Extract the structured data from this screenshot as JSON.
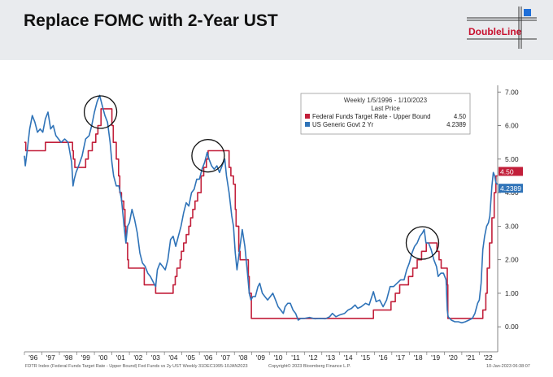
{
  "header": {
    "title": "Replace FOMC with 2-Year UST",
    "brand": "DoubleLine",
    "brand_color": "#c8102e",
    "brand_accent": "#1e6fd9"
  },
  "footer": {
    "left": "FDTR Index (Federal Funds Target Rate - Upper Bound) Fed Funds vs 2y UST  Weekly 31DEC1995-10JAN2023",
    "mid": "Copyright© 2023 Bloomberg Finance L.P.",
    "right": "10-Jan-2023 06:38:07"
  },
  "chart_data": {
    "type": "line",
    "title": "Weekly 1/5/1996 - 1/10/2023",
    "subtitle": "Last Price",
    "xlim": [
      1996.0,
      2023.05
    ],
    "ylim": [
      -0.6,
      7.2
    ],
    "x_ticks": [
      "'96",
      "'97",
      "'98",
      "'99",
      "'00",
      "'01",
      "'02",
      "'03",
      "'04",
      "'05",
      "'06",
      "'07",
      "'08",
      "'09",
      "'10",
      "'11",
      "'12",
      "'13",
      "'14",
      "'15",
      "'16",
      "'17",
      "'18",
      "'19",
      "'20",
      "'21",
      "'22"
    ],
    "y_ticks": [
      "7.00",
      "6.00",
      "5.00",
      "4.00",
      "3.00",
      "2.00",
      "1.00",
      "0.00"
    ],
    "legend_position": "top-right",
    "series": [
      {
        "name": "Federal Funds Target Rate - Upper Bound",
        "last_value": "4.50",
        "color": "#c21f3a",
        "step": true,
        "points": [
          [
            1996.0,
            5.5
          ],
          [
            1996.08,
            5.25
          ],
          [
            1997.2,
            5.5
          ],
          [
            1998.75,
            5.25
          ],
          [
            1998.8,
            5.0
          ],
          [
            1998.88,
            4.75
          ],
          [
            1999.5,
            5.0
          ],
          [
            1999.65,
            5.25
          ],
          [
            1999.88,
            5.5
          ],
          [
            2000.08,
            5.75
          ],
          [
            2000.2,
            6.0
          ],
          [
            2000.38,
            6.5
          ],
          [
            2001.0,
            6.0
          ],
          [
            2001.08,
            5.5
          ],
          [
            2001.25,
            5.0
          ],
          [
            2001.38,
            4.5
          ],
          [
            2001.45,
            4.0
          ],
          [
            2001.55,
            3.75
          ],
          [
            2001.68,
            3.5
          ],
          [
            2001.75,
            3.0
          ],
          [
            2001.8,
            2.5
          ],
          [
            2001.9,
            2.0
          ],
          [
            2001.95,
            1.75
          ],
          [
            2002.85,
            1.25
          ],
          [
            2003.5,
            1.0
          ],
          [
            2004.5,
            1.25
          ],
          [
            2004.62,
            1.5
          ],
          [
            2004.72,
            1.75
          ],
          [
            2004.9,
            2.0
          ],
          [
            2004.97,
            2.25
          ],
          [
            2005.1,
            2.5
          ],
          [
            2005.25,
            2.75
          ],
          [
            2005.4,
            3.0
          ],
          [
            2005.5,
            3.25
          ],
          [
            2005.62,
            3.5
          ],
          [
            2005.75,
            3.75
          ],
          [
            2005.9,
            4.0
          ],
          [
            2006.1,
            4.5
          ],
          [
            2006.25,
            4.75
          ],
          [
            2006.4,
            5.0
          ],
          [
            2006.5,
            5.25
          ],
          [
            2007.7,
            4.75
          ],
          [
            2007.8,
            4.5
          ],
          [
            2007.95,
            4.25
          ],
          [
            2008.05,
            3.5
          ],
          [
            2008.1,
            3.0
          ],
          [
            2008.25,
            2.25
          ],
          [
            2008.33,
            2.0
          ],
          [
            2008.8,
            1.5
          ],
          [
            2008.85,
            1.0
          ],
          [
            2008.97,
            0.25
          ],
          [
            2015.95,
            0.5
          ],
          [
            2016.95,
            0.75
          ],
          [
            2017.2,
            1.0
          ],
          [
            2017.45,
            1.25
          ],
          [
            2017.95,
            1.5
          ],
          [
            2018.2,
            1.75
          ],
          [
            2018.45,
            2.0
          ],
          [
            2018.7,
            2.25
          ],
          [
            2018.97,
            2.5
          ],
          [
            2019.58,
            2.25
          ],
          [
            2019.7,
            2.0
          ],
          [
            2019.82,
            1.75
          ],
          [
            2020.17,
            1.25
          ],
          [
            2020.2,
            0.25
          ],
          [
            2022.2,
            0.5
          ],
          [
            2022.37,
            1.0
          ],
          [
            2022.45,
            1.75
          ],
          [
            2022.58,
            2.5
          ],
          [
            2022.72,
            3.25
          ],
          [
            2022.85,
            4.0
          ],
          [
            2022.95,
            4.5
          ],
          [
            2023.03,
            4.5
          ]
        ]
      },
      {
        "name": "US Generic Govt 2 Yr",
        "last_value": "4.2389",
        "color": "#2f73b8",
        "step": false,
        "points": [
          [
            1996.0,
            5.1
          ],
          [
            1996.05,
            4.8
          ],
          [
            1996.15,
            5.2
          ],
          [
            1996.3,
            5.9
          ],
          [
            1996.45,
            6.3
          ],
          [
            1996.6,
            6.1
          ],
          [
            1996.75,
            5.8
          ],
          [
            1996.9,
            5.9
          ],
          [
            1997.05,
            5.8
          ],
          [
            1997.2,
            6.2
          ],
          [
            1997.35,
            6.4
          ],
          [
            1997.5,
            5.9
          ],
          [
            1997.65,
            6.0
          ],
          [
            1997.8,
            5.7
          ],
          [
            1997.95,
            5.6
          ],
          [
            1998.1,
            5.5
          ],
          [
            1998.3,
            5.6
          ],
          [
            1998.5,
            5.5
          ],
          [
            1998.7,
            4.9
          ],
          [
            1998.78,
            4.2
          ],
          [
            1998.85,
            4.4
          ],
          [
            1998.95,
            4.6
          ],
          [
            1999.1,
            4.8
          ],
          [
            1999.3,
            5.1
          ],
          [
            1999.5,
            5.6
          ],
          [
            1999.7,
            5.7
          ],
          [
            1999.85,
            6.0
          ],
          [
            2000.0,
            6.4
          ],
          [
            2000.15,
            6.7
          ],
          [
            2000.3,
            6.9
          ],
          [
            2000.45,
            6.6
          ],
          [
            2000.6,
            6.3
          ],
          [
            2000.75,
            6.1
          ],
          [
            2000.9,
            5.5
          ],
          [
            2001.0,
            4.9
          ],
          [
            2001.1,
            4.5
          ],
          [
            2001.25,
            4.2
          ],
          [
            2001.4,
            4.2
          ],
          [
            2001.55,
            3.8
          ],
          [
            2001.7,
            3.0
          ],
          [
            2001.8,
            2.5
          ],
          [
            2001.9,
            3.0
          ],
          [
            2002.0,
            3.1
          ],
          [
            2002.15,
            3.5
          ],
          [
            2002.3,
            3.2
          ],
          [
            2002.45,
            2.8
          ],
          [
            2002.6,
            2.2
          ],
          [
            2002.75,
            1.9
          ],
          [
            2002.9,
            1.8
          ],
          [
            2003.05,
            1.6
          ],
          [
            2003.2,
            1.5
          ],
          [
            2003.4,
            1.3
          ],
          [
            2003.5,
            1.2
          ],
          [
            2003.6,
            1.7
          ],
          [
            2003.75,
            1.9
          ],
          [
            2003.9,
            1.8
          ],
          [
            2004.05,
            1.7
          ],
          [
            2004.2,
            2.0
          ],
          [
            2004.35,
            2.6
          ],
          [
            2004.5,
            2.7
          ],
          [
            2004.65,
            2.4
          ],
          [
            2004.8,
            2.7
          ],
          [
            2004.95,
            3.0
          ],
          [
            2005.1,
            3.4
          ],
          [
            2005.25,
            3.7
          ],
          [
            2005.4,
            3.6
          ],
          [
            2005.55,
            4.0
          ],
          [
            2005.7,
            4.1
          ],
          [
            2005.85,
            4.4
          ],
          [
            2006.0,
            4.4
          ],
          [
            2006.15,
            4.7
          ],
          [
            2006.3,
            4.9
          ],
          [
            2006.45,
            5.2
          ],
          [
            2006.55,
            5.0
          ],
          [
            2006.7,
            4.8
          ],
          [
            2006.85,
            4.7
          ],
          [
            2007.0,
            4.8
          ],
          [
            2007.15,
            4.6
          ],
          [
            2007.3,
            4.8
          ],
          [
            2007.45,
            5.0
          ],
          [
            2007.55,
            4.5
          ],
          [
            2007.7,
            4.0
          ],
          [
            2007.85,
            3.3
          ],
          [
            2007.95,
            3.0
          ],
          [
            2008.05,
            2.2
          ],
          [
            2008.15,
            1.7
          ],
          [
            2008.3,
            2.3
          ],
          [
            2008.45,
            2.9
          ],
          [
            2008.6,
            2.4
          ],
          [
            2008.75,
            1.6
          ],
          [
            2008.85,
            1.0
          ],
          [
            2008.95,
            0.8
          ],
          [
            2009.05,
            0.9
          ],
          [
            2009.2,
            0.9
          ],
          [
            2009.35,
            1.2
          ],
          [
            2009.45,
            1.3
          ],
          [
            2009.6,
            1.0
          ],
          [
            2009.75,
            0.9
          ],
          [
            2009.9,
            0.8
          ],
          [
            2010.05,
            0.9
          ],
          [
            2010.2,
            1.0
          ],
          [
            2010.35,
            0.8
          ],
          [
            2010.5,
            0.6
          ],
          [
            2010.65,
            0.5
          ],
          [
            2010.8,
            0.4
          ],
          [
            2010.9,
            0.6
          ],
          [
            2011.05,
            0.7
          ],
          [
            2011.2,
            0.7
          ],
          [
            2011.35,
            0.5
          ],
          [
            2011.5,
            0.4
          ],
          [
            2011.65,
            0.2
          ],
          [
            2011.8,
            0.25
          ],
          [
            2012.0,
            0.25
          ],
          [
            2012.3,
            0.28
          ],
          [
            2012.6,
            0.24
          ],
          [
            2012.9,
            0.25
          ],
          [
            2013.2,
            0.24
          ],
          [
            2013.45,
            0.3
          ],
          [
            2013.6,
            0.4
          ],
          [
            2013.8,
            0.3
          ],
          [
            2014.0,
            0.35
          ],
          [
            2014.3,
            0.4
          ],
          [
            2014.5,
            0.5
          ],
          [
            2014.7,
            0.55
          ],
          [
            2014.9,
            0.65
          ],
          [
            2015.05,
            0.55
          ],
          [
            2015.25,
            0.6
          ],
          [
            2015.5,
            0.7
          ],
          [
            2015.7,
            0.65
          ],
          [
            2015.95,
            1.05
          ],
          [
            2016.1,
            0.75
          ],
          [
            2016.3,
            0.8
          ],
          [
            2016.5,
            0.6
          ],
          [
            2016.7,
            0.8
          ],
          [
            2016.9,
            1.2
          ],
          [
            2017.1,
            1.2
          ],
          [
            2017.3,
            1.3
          ],
          [
            2017.5,
            1.4
          ],
          [
            2017.7,
            1.4
          ],
          [
            2017.85,
            1.7
          ],
          [
            2018.0,
            1.9
          ],
          [
            2018.15,
            2.2
          ],
          [
            2018.3,
            2.4
          ],
          [
            2018.45,
            2.5
          ],
          [
            2018.6,
            2.7
          ],
          [
            2018.75,
            2.8
          ],
          [
            2018.85,
            2.9
          ],
          [
            2018.95,
            2.5
          ],
          [
            2019.1,
            2.5
          ],
          [
            2019.25,
            2.3
          ],
          [
            2019.4,
            2.0
          ],
          [
            2019.55,
            1.8
          ],
          [
            2019.65,
            1.5
          ],
          [
            2019.8,
            1.6
          ],
          [
            2019.95,
            1.6
          ],
          [
            2020.1,
            1.4
          ],
          [
            2020.17,
            0.5
          ],
          [
            2020.22,
            0.3
          ],
          [
            2020.4,
            0.2
          ],
          [
            2020.6,
            0.15
          ],
          [
            2020.8,
            0.15
          ],
          [
            2021.0,
            0.12
          ],
          [
            2021.2,
            0.15
          ],
          [
            2021.4,
            0.2
          ],
          [
            2021.6,
            0.25
          ],
          [
            2021.75,
            0.4
          ],
          [
            2021.9,
            0.7
          ],
          [
            2022.0,
            0.8
          ],
          [
            2022.1,
            1.3
          ],
          [
            2022.2,
            2.3
          ],
          [
            2022.3,
            2.7
          ],
          [
            2022.42,
            3.0
          ],
          [
            2022.52,
            3.1
          ],
          [
            2022.6,
            3.3
          ],
          [
            2022.72,
            4.2
          ],
          [
            2022.8,
            4.6
          ],
          [
            2022.88,
            4.5
          ],
          [
            2022.95,
            4.3
          ],
          [
            2023.03,
            4.24
          ]
        ]
      }
    ],
    "annotations": [
      {
        "type": "circle",
        "x": 2000.35,
        "y": 6.4
      },
      {
        "type": "circle",
        "x": 2006.5,
        "y": 5.1
      },
      {
        "type": "circle",
        "x": 2018.75,
        "y": 2.5
      }
    ]
  }
}
